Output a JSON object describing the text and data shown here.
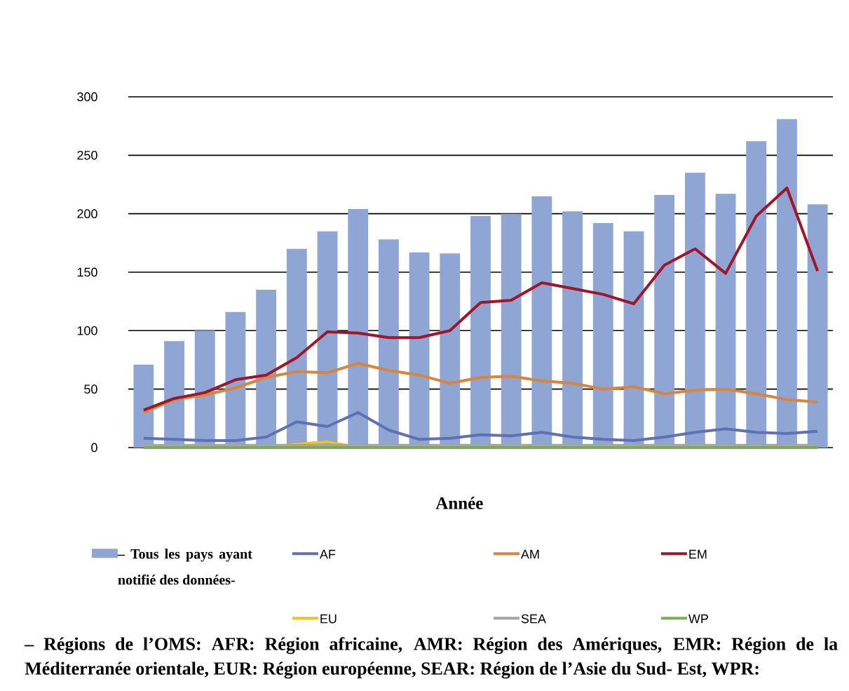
{
  "chart_data": {
    "type": "bar",
    "xlabel": "Année",
    "categories": [
      null,
      null,
      null,
      null,
      null,
      null,
      null,
      null,
      null,
      null,
      null,
      null,
      null,
      null,
      null,
      null,
      null,
      null,
      null,
      null,
      null,
      null,
      null
    ],
    "series": [
      {
        "name": "– Tous les pays ayant notifié des données-",
        "color": "#8fa5d4",
        "values": [
          71,
          91,
          100,
          116,
          135,
          170,
          185,
          204,
          178,
          167,
          166,
          198,
          200,
          215,
          202,
          192,
          185,
          216,
          235,
          217,
          262,
          281,
          208
        ]
      },
      {
        "name": "AF",
        "type": "line",
        "color": "#6070b4",
        "values": [
          8,
          7,
          6,
          6,
          9,
          22,
          18,
          30,
          15,
          7,
          8,
          11,
          10,
          13,
          9,
          7,
          6,
          9,
          13,
          16,
          13,
          12,
          14
        ]
      },
      {
        "name": "AM",
        "type": "line",
        "color": "#d8863d",
        "values": [
          30,
          41,
          45,
          51,
          60,
          65,
          64,
          72,
          66,
          62,
          55,
          60,
          61,
          57,
          55,
          50,
          52,
          46,
          49,
          50,
          46,
          41,
          39
        ]
      },
      {
        "name": "EM",
        "type": "line",
        "color": "#a01628",
        "values": [
          32,
          42,
          47,
          58,
          62,
          77,
          99,
          98,
          94,
          94,
          100,
          124,
          126,
          141,
          136,
          131,
          123,
          156,
          170,
          149,
          198,
          222,
          151
        ]
      },
      {
        "name": "EU",
        "type": "line",
        "color": "#f0c31c",
        "values": [
          null,
          null,
          null,
          null,
          0,
          3,
          5,
          0,
          null,
          null,
          null,
          null,
          null,
          null,
          null,
          null,
          null,
          null,
          null,
          null,
          null,
          null,
          null
        ]
      },
      {
        "name": "SEA",
        "type": "line",
        "color": "#a5a5a5",
        "values": [
          2,
          2,
          2,
          2,
          2,
          2,
          2,
          2,
          2,
          2,
          2,
          2,
          2,
          2,
          2,
          2,
          2,
          2,
          2,
          2,
          2,
          2,
          2
        ]
      },
      {
        "name": "WP",
        "type": "line",
        "color": "#79ad51",
        "values": [
          0,
          0,
          0,
          0,
          0,
          0,
          0,
          0,
          0,
          0,
          0,
          0,
          0,
          0,
          0,
          0,
          0,
          0,
          0,
          0,
          0,
          0,
          0
        ]
      }
    ],
    "ylim": [
      0,
      300
    ],
    "yticks": [
      0,
      50,
      100,
      150,
      200,
      250,
      300
    ],
    "grid": "y",
    "legend": "bottom",
    "tick_labels": "y",
    "marker": "none",
    "line_style": "solid",
    "annotations": [
      "– Régions de l’OMS: AFR: Région africaine, AMR: Région des Amériques, EMR: Région de la Méditerranée orientale, EUR: Région européenne, SEAR: Région de l’Asie du Sud- Est, WPR:"
    ]
  }
}
